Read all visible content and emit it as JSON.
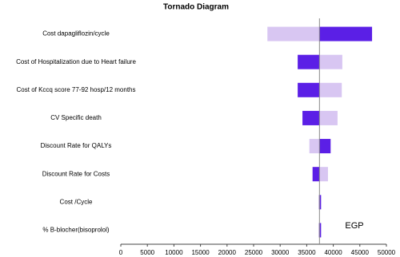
{
  "chart_data": {
    "type": "tornado",
    "title": "Tornado Diagram",
    "categories": [
      "Cost dapagliflozin/cycle",
      "Cost of Hospitalization due to Heart failure",
      "Cost of Kccq score 77-92 hosp/12 months",
      "CV Specific death",
      "Discount Rate for QALYs",
      "Discount Rate for Costs",
      "Cost /Cycle",
      "%  B-blocher(bisoprolol)"
    ],
    "baseline": 37400,
    "series": [
      {
        "color": "#5b1fe6",
        "values": [
          47300,
          33300,
          33300,
          34200,
          39500,
          36100,
          37700,
          37700
        ]
      },
      {
        "color": "#d8c6f2",
        "values": [
          27600,
          41700,
          41600,
          40800,
          35500,
          39000,
          37200,
          37200
        ]
      }
    ],
    "xlim": [
      0,
      50000
    ],
    "xticks": [
      0,
      5000,
      10000,
      15000,
      20000,
      25000,
      30000,
      35000,
      40000,
      45000,
      50000
    ],
    "annotation": "EGP"
  }
}
